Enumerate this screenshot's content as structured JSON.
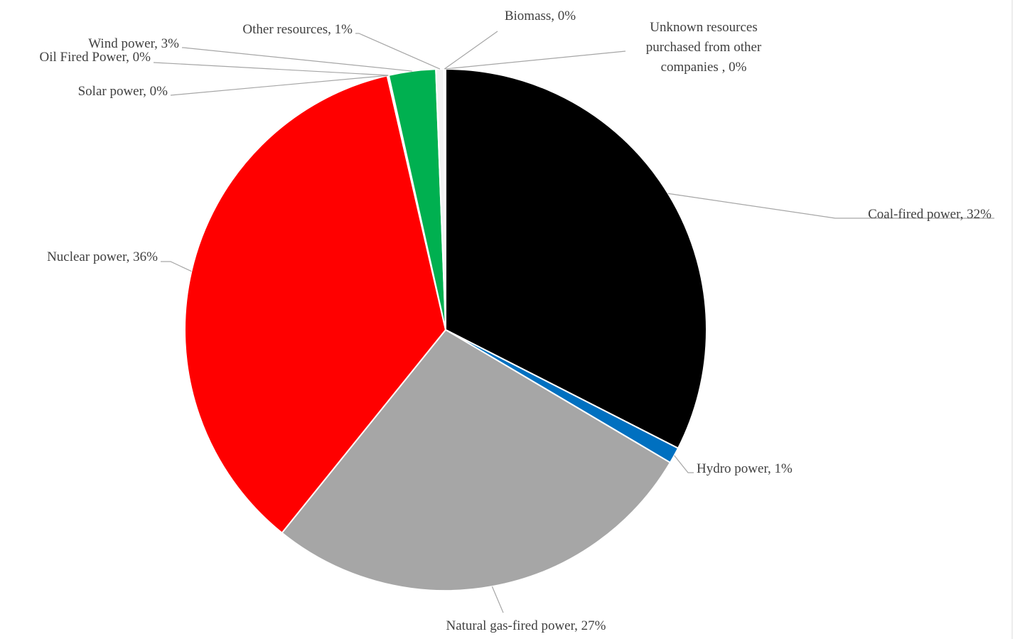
{
  "chart_data": {
    "type": "pie",
    "title": "",
    "start_angle_deg": 0,
    "direction": "clockwise",
    "legend": "none",
    "data_labels": "category-and-percent-outside",
    "slices": [
      {
        "name": "Coal-fired power",
        "value": 32.5,
        "label": "Coal-fired power, 32%",
        "color": "#000000"
      },
      {
        "name": "Hydro power",
        "value": 1.0,
        "label": "Hydro power, 1%",
        "color": "#0070c0"
      },
      {
        "name": "Natural gas-fired power",
        "value": 27.3,
        "label": "Natural gas-fired power, 27%",
        "color": "#a6a6a6"
      },
      {
        "name": "Nuclear power",
        "value": 35.6,
        "label": "Nuclear power, 36%",
        "color": "#ff0000"
      },
      {
        "name": "Solar power",
        "value": 0.05,
        "label": "Solar power, 0%",
        "color": "#ffc000"
      },
      {
        "name": "Oil Fired Power",
        "value": 0.05,
        "label": "Oil Fired Power, 0%",
        "color": "#7f7f7f"
      },
      {
        "name": "Wind power",
        "value": 2.9,
        "label": "Wind power, 3%",
        "color": "#00b050"
      },
      {
        "name": "Other resources",
        "value": 0.5,
        "label": "Other resources,  1%",
        "color": "#f2f2f2"
      },
      {
        "name": "Biomass",
        "value": 0.05,
        "label": "Biomass, 0%",
        "color": "#70ad47"
      },
      {
        "name": "Unknown resources purchased from other companies",
        "value": 0.05,
        "label": [
          "Unknown resources",
          "purchased from other",
          "companies , 0%"
        ],
        "color": "#d9d9d9"
      }
    ]
  }
}
